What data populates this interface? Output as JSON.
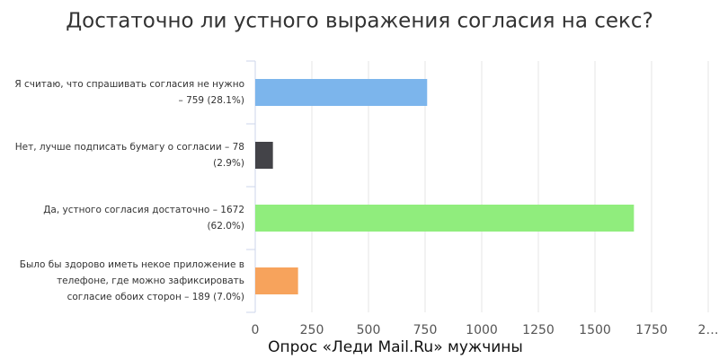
{
  "chart_data": {
    "type": "bar",
    "orientation": "horizontal",
    "title": "Достаточно ли устного выражения согласия на секс?",
    "caption": "Опрос «Леди Mail.Ru» мужчины",
    "categories": [
      "Я считаю, что спрашивать согласия не нужно – 759 (28.1%)",
      "Нет, лучше подписать бумагу о согласии – 78 (2.9%)",
      "Да, устного согласия достаточно – 1672 (62.0%)",
      "Было бы здорово иметь некое приложение в телефоне, где можно зафиксировать согласие обоих сторон – 189 (7.0%)"
    ],
    "values": [
      759,
      78,
      1672,
      189
    ],
    "colors": [
      "#7cb5ec",
      "#434348",
      "#90ed7d",
      "#f7a35c"
    ],
    "xlim": [
      0,
      2000
    ],
    "xticks": [
      0,
      250,
      500,
      750,
      1000,
      1250,
      1500,
      1750,
      {
        "value": 2000,
        "label": "2…"
      }
    ],
    "grid": true
  }
}
